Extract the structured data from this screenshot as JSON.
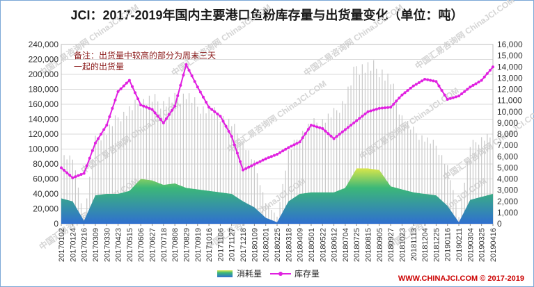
{
  "title": "JCI：2017-2019年国内主要港口鱼粉库存量与出货量变化（单位：吨）",
  "footer": "WWW.CHINAJCI.COM © 2017-2019",
  "watermark": "中国汇易咨询网 ChinaJCI.COM",
  "colors": {
    "stock_line": "#e020e0",
    "area_top": "#d8e64a",
    "area_mid": "#3cb878",
    "area_bottom": "#2f6fd0",
    "spike": "#c8c8c8",
    "grid": "#d9d9d9"
  },
  "chart_data": {
    "type": "area",
    "annotation": [
      "备注：出货量中较高的部分为周末三天",
      "一起的出货量"
    ],
    "legend": [
      "消耗量",
      "库存量"
    ],
    "legend_position": "bottom",
    "grid": true,
    "y_left": {
      "min": 0,
      "max": 240000,
      "step": 20000,
      "ticks": [
        "0",
        "20,000",
        "40,000",
        "60,000",
        "80,000",
        "100,000",
        "120,000",
        "140,000",
        "160,000",
        "180,000",
        "200,000",
        "220,000",
        "240,000"
      ]
    },
    "y_right": {
      "min": 0,
      "max": 16000,
      "step": 1000,
      "ticks": [
        "0",
        "1,000",
        "2,000",
        "3,000",
        "4,000",
        "5,000",
        "6,000",
        "7,000",
        "8,000",
        "9,000",
        "10,000",
        "11,000",
        "12,000",
        "13,000",
        "14,000",
        "15,000",
        "16,000"
      ]
    },
    "x_ticks": [
      "20170102",
      "20170124",
      "20170216",
      "20170309",
      "20170330",
      "20170423",
      "20170515",
      "20170606",
      "20170627",
      "20170718",
      "20170808",
      "20170829",
      "20170919",
      "20171016",
      "20171106",
      "20171127",
      "20171218",
      "20180109",
      "20180201",
      "20180225",
      "20180318",
      "20180409",
      "20180501",
      "20180522",
      "20180612",
      "20180704",
      "20180725",
      "20180815",
      "20180905",
      "20180927",
      "20181023",
      "20181113",
      "20181204",
      "20181225",
      "20190116",
      "20190211",
      "20190304",
      "20190325",
      "20190416"
    ],
    "series": [
      {
        "name": "库存量",
        "axis": "right",
        "x": [
          "20170102",
          "20170124",
          "20170216",
          "20170309",
          "20170330",
          "20170423",
          "20170515",
          "20170606",
          "20170627",
          "20170718",
          "20170808",
          "20170829",
          "20170919",
          "20171016",
          "20171106",
          "20171127",
          "20171218",
          "20180109",
          "20180201",
          "20180225",
          "20180318",
          "20180409",
          "20180501",
          "20180522",
          "20180612",
          "20180704",
          "20180725",
          "20180815",
          "20180905",
          "20180927",
          "20181023",
          "20181113",
          "20181204",
          "20181225",
          "20190116",
          "20190211",
          "20190304",
          "20190325",
          "20190416"
        ],
        "values": [
          5000,
          4100,
          4500,
          7200,
          8800,
          11800,
          12800,
          10600,
          10200,
          9000,
          10500,
          14200,
          12200,
          10400,
          9600,
          7800,
          4800,
          5300,
          5800,
          6200,
          6800,
          7300,
          8800,
          8500,
          7600,
          8400,
          9200,
          10000,
          10300,
          10400,
          11500,
          12300,
          12900,
          12700,
          11100,
          11400,
          12200,
          12800,
          14000
        ]
      },
      {
        "name": "消耗量",
        "axis": "left",
        "x": [
          "20170102",
          "20170124",
          "20170216",
          "20170309",
          "20170330",
          "20170423",
          "20170515",
          "20170606",
          "20170627",
          "20170718",
          "20170808",
          "20170829",
          "20170919",
          "20171016",
          "20171106",
          "20171127",
          "20171218",
          "20180109",
          "20180201",
          "20180225",
          "20180318",
          "20180409",
          "20180501",
          "20180522",
          "20180612",
          "20180704",
          "20180725",
          "20180815",
          "20180905",
          "20180927",
          "20181023",
          "20181113",
          "20181204",
          "20181225",
          "20190116",
          "20190211",
          "20190304",
          "20190325",
          "20190416"
        ],
        "values": [
          34000,
          30000,
          4000,
          38000,
          40000,
          40000,
          44000,
          60000,
          58000,
          52000,
          54000,
          48000,
          46000,
          44000,
          42000,
          40000,
          30000,
          22000,
          8000,
          2000,
          30000,
          40000,
          42000,
          42000,
          42000,
          48000,
          74000,
          74000,
          72000,
          50000,
          46000,
          42000,
          40000,
          38000,
          24000,
          2000,
          32000,
          36000,
          40000
        ],
        "weekend_peaks": [
          96000,
          92000,
          10000,
          118000,
          130000,
          150000,
          160000,
          172000,
          175000,
          170000,
          175000,
          182000,
          165000,
          160000,
          152000,
          140000,
          115000,
          85000,
          30000,
          10000,
          100000,
          125000,
          140000,
          145000,
          155000,
          175000,
          222000,
          220000,
          218000,
          200000,
          150000,
          130000,
          120000,
          110000,
          80000,
          10000,
          110000,
          120000,
          125000
        ]
      }
    ]
  }
}
